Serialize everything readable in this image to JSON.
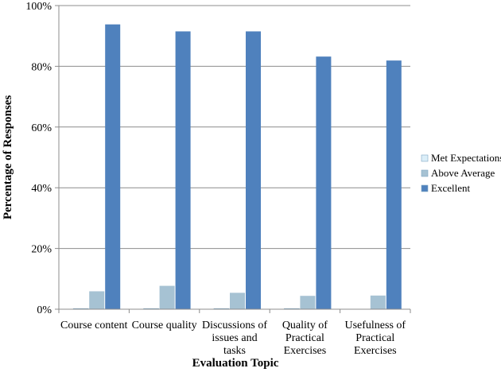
{
  "chart_data": {
    "type": "bar",
    "xlabel": "Evaluation Topic",
    "ylabel": "Percentage of Responses",
    "ylim": [
      0,
      100
    ],
    "yticks": [
      "0%",
      "20%",
      "40%",
      "60%",
      "80%",
      "100%"
    ],
    "grid": true,
    "legend_position": "right",
    "categories": [
      [
        "Course content"
      ],
      [
        "Course quality"
      ],
      [
        "Discussions of",
        "issues and",
        "tasks"
      ],
      [
        "Quality of",
        "Practical",
        "Exercises"
      ],
      [
        "Usefulness of",
        "Practical",
        "Exercises"
      ]
    ],
    "series": [
      {
        "name": "Met Expectations",
        "color": "#dbeef8",
        "values": [
          0.2,
          0.2,
          0.2,
          0.2,
          0
        ]
      },
      {
        "name": "Above Average",
        "color": "#a6c2d3",
        "values": [
          5.9,
          7.7,
          5.4,
          4.4,
          4.5
        ]
      },
      {
        "name": "Excellent",
        "color": "#4f81bd",
        "values": [
          93.8,
          91.5,
          91.5,
          83.2,
          81.9
        ]
      }
    ]
  }
}
